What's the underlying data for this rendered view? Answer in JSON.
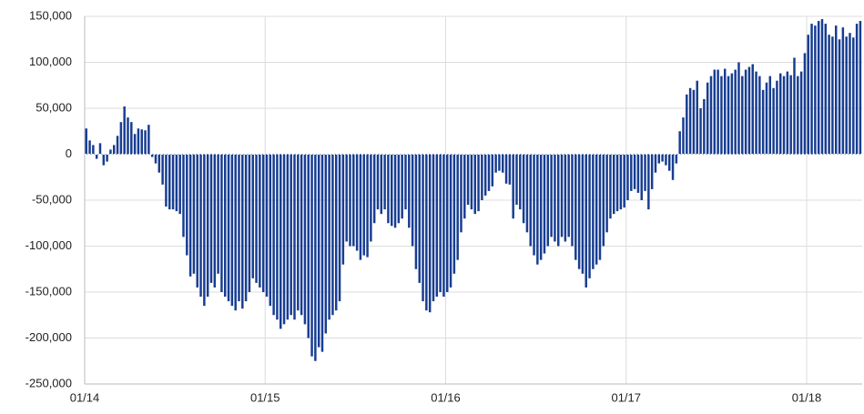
{
  "chart_data": {
    "type": "bar",
    "color": "#173d92",
    "grid": true,
    "ylim": [
      -250000,
      150000
    ],
    "yticks": [
      {
        "value": -250000,
        "label": "-250,000"
      },
      {
        "value": -200000,
        "label": "-200,000"
      },
      {
        "value": -150000,
        "label": "-150,000"
      },
      {
        "value": -100000,
        "label": "-100,000"
      },
      {
        "value": -50000,
        "label": "-50,000"
      },
      0,
      {
        "value": 50000,
        "label": "50,000"
      },
      {
        "value": 100000,
        "label": "100,000"
      },
      {
        "value": 150000,
        "label": "150,000"
      }
    ],
    "categories": [
      "01/14",
      null,
      null,
      null,
      null,
      null,
      null,
      null,
      null,
      null,
      null,
      null,
      null,
      null,
      null,
      null,
      null,
      null,
      null,
      null,
      null,
      null,
      null,
      null,
      null,
      null,
      null,
      null,
      null,
      null,
      null,
      null,
      null,
      null,
      null,
      null,
      null,
      null,
      null,
      null,
      null,
      null,
      null,
      null,
      null,
      null,
      null,
      null,
      null,
      null,
      null,
      null,
      "01/15",
      null,
      null,
      null,
      null,
      null,
      null,
      null,
      null,
      null,
      null,
      null,
      null,
      null,
      null,
      null,
      null,
      null,
      null,
      null,
      null,
      null,
      null,
      null,
      null,
      null,
      null,
      null,
      null,
      null,
      null,
      null,
      null,
      null,
      null,
      null,
      null,
      null,
      null,
      null,
      null,
      null,
      null,
      null,
      null,
      null,
      null,
      null,
      null,
      null,
      null,
      null,
      "01/16",
      null,
      null,
      null,
      null,
      null,
      null,
      null,
      null,
      null,
      null,
      null,
      null,
      null,
      null,
      null,
      null,
      null,
      null,
      null,
      null,
      null,
      null,
      null,
      null,
      null,
      null,
      null,
      null,
      null,
      null,
      null,
      null,
      null,
      null,
      null,
      null,
      null,
      null,
      null,
      null,
      null,
      null,
      null,
      null,
      null,
      null,
      null,
      null,
      null,
      null,
      null,
      "01/17",
      null,
      null,
      null,
      null,
      null,
      null,
      null,
      null,
      null,
      null,
      null,
      null,
      null,
      null,
      null,
      null,
      null,
      null,
      null,
      null,
      null,
      null,
      null,
      null,
      null,
      null,
      null,
      null,
      null,
      null,
      null,
      null,
      null,
      null,
      null,
      null,
      null,
      null,
      null,
      null,
      null,
      null,
      null,
      null,
      null,
      null,
      null,
      null,
      null,
      null,
      null,
      "01/18",
      null,
      null,
      null,
      null,
      null,
      null,
      null,
      null,
      null,
      null,
      null,
      null,
      null,
      null,
      null
    ],
    "values": [
      28000,
      15000,
      10000,
      -5000,
      12000,
      -12000,
      -8000,
      5000,
      10000,
      20000,
      35000,
      52000,
      40000,
      35000,
      22000,
      28000,
      27000,
      26000,
      32000,
      -3000,
      -10000,
      -20000,
      -33000,
      -57000,
      -60000,
      -60000,
      -62000,
      -65000,
      -90000,
      -110000,
      -133000,
      -130000,
      -145000,
      -155000,
      -165000,
      -155000,
      -140000,
      -145000,
      -130000,
      -150000,
      -155000,
      -160000,
      -165000,
      -170000,
      -160000,
      -168000,
      -160000,
      -150000,
      -135000,
      -140000,
      -145000,
      -150000,
      -155000,
      -165000,
      -175000,
      -180000,
      -190000,
      -185000,
      -180000,
      -175000,
      -180000,
      -170000,
      -175000,
      -185000,
      -200000,
      -220000,
      -225000,
      -210000,
      -215000,
      -195000,
      -180000,
      -175000,
      -170000,
      -160000,
      -120000,
      -95000,
      -100000,
      -100000,
      -105000,
      -115000,
      -110000,
      -112000,
      -95000,
      -75000,
      -60000,
      -65000,
      -60000,
      -75000,
      -78000,
      -80000,
      -75000,
      -70000,
      -60000,
      -80000,
      -100000,
      -125000,
      -140000,
      -160000,
      -170000,
      -172000,
      -160000,
      -155000,
      -150000,
      -155000,
      -150000,
      -145000,
      -130000,
      -115000,
      -85000,
      -70000,
      -55000,
      -60000,
      -65000,
      -62000,
      -50000,
      -45000,
      -40000,
      -35000,
      -20000,
      -18000,
      -20000,
      -32000,
      -33000,
      -70000,
      -55000,
      -60000,
      -75000,
      -85000,
      -100000,
      -110000,
      -120000,
      -115000,
      -108000,
      -100000,
      -90000,
      -95000,
      -100000,
      -90000,
      -95000,
      -90000,
      -100000,
      -115000,
      -125000,
      -130000,
      -145000,
      -135000,
      -125000,
      -120000,
      -115000,
      -100000,
      -85000,
      -70000,
      -65000,
      -62000,
      -60000,
      -58000,
      -50000,
      -40000,
      -38000,
      -42000,
      -50000,
      -40000,
      -60000,
      -38000,
      -20000,
      -10000,
      -8000,
      -12000,
      -18000,
      -28000,
      -10000,
      25000,
      40000,
      65000,
      72000,
      70000,
      80000,
      50000,
      60000,
      78000,
      85000,
      92000,
      92000,
      85000,
      93000,
      85000,
      88000,
      92000,
      100000,
      85000,
      92000,
      95000,
      98000,
      90000,
      85000,
      70000,
      78000,
      85000,
      72000,
      80000,
      88000,
      85000,
      90000,
      86000,
      105000,
      85000,
      90000,
      110000,
      130000,
      142000,
      140000,
      145000,
      147000,
      142000,
      130000,
      128000,
      140000,
      125000,
      138000,
      128000,
      132000,
      127000,
      142000,
      145000
    ]
  }
}
